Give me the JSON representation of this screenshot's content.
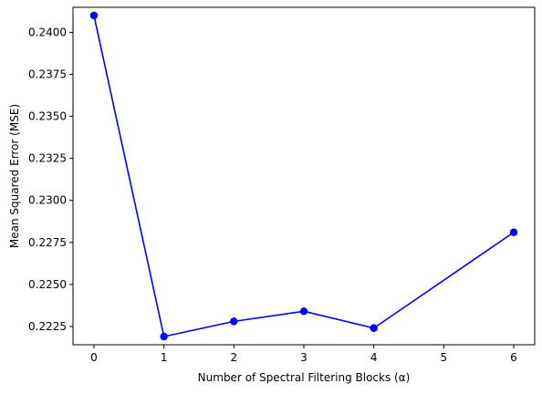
{
  "chart_data": {
    "type": "line",
    "title": "",
    "xlabel": "Number of Spectral Filtering Blocks (α)",
    "ylabel": "Mean Squared Error (MSE)",
    "xlim": [
      -0.3,
      6.3
    ],
    "ylim": [
      0.22141,
      0.24149
    ],
    "x_ticks": [
      0,
      1,
      2,
      3,
      4,
      5,
      6
    ],
    "y_ticks": [
      0.2225,
      0.225,
      0.2275,
      0.23,
      0.2325,
      0.235,
      0.2375,
      0.24
    ],
    "y_tick_labels": [
      "0.2225",
      "0.2250",
      "0.2275",
      "0.2300",
      "0.2325",
      "0.2350",
      "0.2375",
      "0.2400"
    ],
    "grid": false,
    "series": [
      {
        "color": "#0000ff",
        "marker": "circle",
        "x": [
          0,
          1,
          2,
          3,
          4,
          6
        ],
        "y": [
          0.241,
          0.2219,
          0.2228,
          0.2234,
          0.2224,
          0.2281
        ]
      }
    ]
  }
}
